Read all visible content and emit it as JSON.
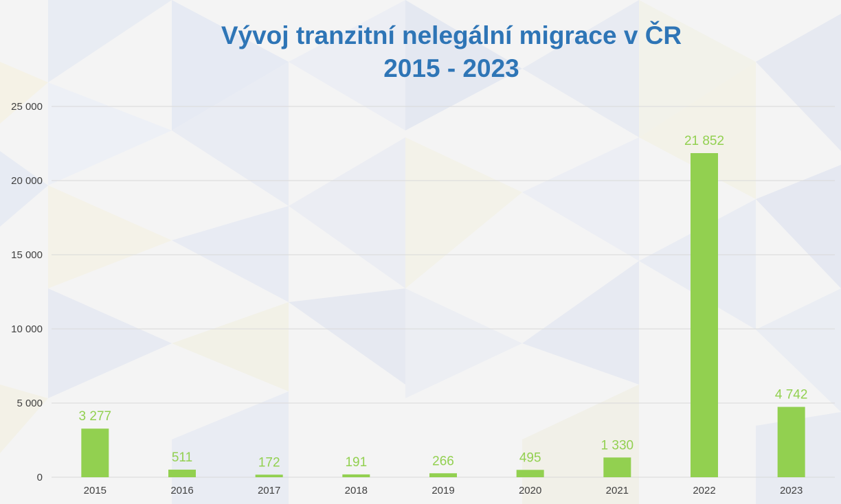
{
  "chart_data": {
    "type": "bar",
    "title": [
      "Vývoj tranzitní nelegální migrace v ČR",
      "2015 - 2023"
    ],
    "categories": [
      "2015",
      "2016",
      "2017",
      "2018",
      "2019",
      "2020",
      "2021",
      "2022",
      "2023"
    ],
    "values": [
      3277,
      511,
      172,
      191,
      266,
      495,
      1330,
      21852,
      4742
    ],
    "value_labels": [
      "3 277",
      "511",
      "172",
      "191",
      "266",
      "495",
      "1 330",
      "21 852",
      "4 742"
    ],
    "ylim": [
      0,
      25000
    ],
    "yticks": [
      0,
      5000,
      10000,
      15000,
      20000,
      25000
    ],
    "ytick_labels": [
      "0",
      "5 000",
      "10 000",
      "15 000",
      "20 000",
      "25 000"
    ],
    "xlabel": "",
    "ylabel": "",
    "grid": true,
    "legend": "none"
  },
  "colors": {
    "bar": "#92d050",
    "data_label": "#92d050",
    "title": "#2e75b6",
    "tick_label": "#404040",
    "gridline": "#d9d9d9"
  }
}
